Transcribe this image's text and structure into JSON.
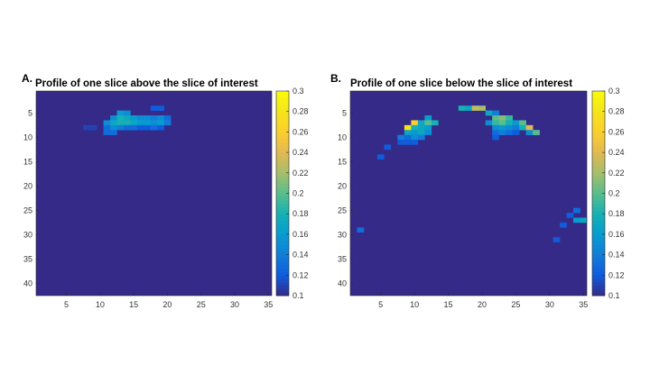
{
  "panels": [
    {
      "label": "A.",
      "chart_data": {
        "type": "heatmap",
        "title": "Profile of one slice above the slice of interest",
        "xlim": [
          0.5,
          35.5
        ],
        "ylim": [
          0.5,
          42.5
        ],
        "xticks": [
          5,
          10,
          15,
          20,
          25,
          30,
          35
        ],
        "yticks": [
          5,
          10,
          15,
          20,
          25,
          30,
          35,
          40
        ],
        "background_value": 0.1,
        "cells": [
          [
            18,
            4,
            0.12
          ],
          [
            19,
            4,
            0.12
          ],
          [
            13,
            5,
            0.16
          ],
          [
            14,
            5,
            0.15
          ],
          [
            12,
            6,
            0.15
          ],
          [
            13,
            6,
            0.18
          ],
          [
            14,
            6,
            0.17
          ],
          [
            15,
            6,
            0.16
          ],
          [
            16,
            6,
            0.15
          ],
          [
            17,
            6,
            0.15
          ],
          [
            18,
            6,
            0.14
          ],
          [
            19,
            6,
            0.15
          ],
          [
            20,
            6,
            0.13
          ],
          [
            11,
            7,
            0.15
          ],
          [
            12,
            7,
            0.17
          ],
          [
            13,
            7,
            0.18
          ],
          [
            14,
            7,
            0.18
          ],
          [
            15,
            7,
            0.17
          ],
          [
            16,
            7,
            0.16
          ],
          [
            17,
            7,
            0.16
          ],
          [
            18,
            7,
            0.15
          ],
          [
            19,
            7,
            0.16
          ],
          [
            20,
            7,
            0.14
          ],
          [
            8,
            8,
            0.11
          ],
          [
            9,
            8,
            0.11
          ],
          [
            11,
            8,
            0.13
          ],
          [
            12,
            8,
            0.15
          ],
          [
            13,
            8,
            0.14
          ],
          [
            14,
            8,
            0.13
          ],
          [
            15,
            8,
            0.13
          ],
          [
            16,
            8,
            0.12
          ],
          [
            17,
            8,
            0.12
          ],
          [
            18,
            8,
            0.13
          ],
          [
            19,
            8,
            0.12
          ],
          [
            11,
            9,
            0.13
          ],
          [
            12,
            9,
            0.13
          ]
        ],
        "colorbar": {
          "min": 0.1,
          "max": 0.3,
          "ticks": [
            "0.1",
            "0.12",
            "0.14",
            "0.16",
            "0.18",
            "0.2",
            "0.22",
            "0.24",
            "0.26",
            "0.28",
            "0.3"
          ]
        }
      }
    },
    {
      "label": "B.",
      "chart_data": {
        "type": "heatmap",
        "title": "Profile of one slice below the slice of interest",
        "xlim": [
          0.5,
          35.5
        ],
        "ylim": [
          0.5,
          42.5
        ],
        "xticks": [
          5,
          10,
          15,
          20,
          25,
          30,
          35
        ],
        "yticks": [
          5,
          10,
          15,
          20,
          25,
          30,
          35,
          40
        ],
        "background_value": 0.1,
        "cells": [
          [
            17,
            4,
            0.18
          ],
          [
            18,
            4,
            0.17
          ],
          [
            19,
            4,
            0.23
          ],
          [
            20,
            4,
            0.22
          ],
          [
            21,
            5,
            0.17
          ],
          [
            22,
            5,
            0.14
          ],
          [
            12,
            6,
            0.16
          ],
          [
            22,
            6,
            0.2
          ],
          [
            23,
            6,
            0.21
          ],
          [
            24,
            6,
            0.19
          ],
          [
            10,
            7,
            0.26
          ],
          [
            11,
            7,
            0.17
          ],
          [
            12,
            7,
            0.2
          ],
          [
            13,
            7,
            0.18
          ],
          [
            21,
            7,
            0.15
          ],
          [
            22,
            7,
            0.19
          ],
          [
            23,
            7,
            0.2
          ],
          [
            24,
            7,
            0.18
          ],
          [
            25,
            7,
            0.16
          ],
          [
            26,
            7,
            0.2
          ],
          [
            9,
            8,
            0.28
          ],
          [
            10,
            8,
            0.18
          ],
          [
            11,
            8,
            0.17
          ],
          [
            12,
            8,
            0.16
          ],
          [
            22,
            8,
            0.15
          ],
          [
            23,
            8,
            0.16
          ],
          [
            24,
            8,
            0.15
          ],
          [
            25,
            8,
            0.14
          ],
          [
            26,
            8,
            0.18
          ],
          [
            27,
            8,
            0.24
          ],
          [
            9,
            9,
            0.17
          ],
          [
            10,
            9,
            0.16
          ],
          [
            11,
            9,
            0.17
          ],
          [
            12,
            9,
            0.15
          ],
          [
            22,
            9,
            0.13
          ],
          [
            23,
            9,
            0.14
          ],
          [
            24,
            9,
            0.13
          ],
          [
            25,
            9,
            0.12
          ],
          [
            27,
            9,
            0.15
          ],
          [
            28,
            9,
            0.2
          ],
          [
            8,
            10,
            0.14
          ],
          [
            9,
            10,
            0.13
          ],
          [
            10,
            10,
            0.15
          ],
          [
            11,
            10,
            0.14
          ],
          [
            22,
            10,
            0.12
          ],
          [
            8,
            11,
            0.12
          ],
          [
            9,
            11,
            0.12
          ],
          [
            10,
            11,
            0.12
          ],
          [
            6,
            12,
            0.12
          ],
          [
            5,
            14,
            0.12
          ],
          [
            34,
            25,
            0.13
          ],
          [
            33,
            26,
            0.12
          ],
          [
            34,
            27,
            0.16
          ],
          [
            35,
            27,
            0.17
          ],
          [
            32,
            28,
            0.12
          ],
          [
            2,
            29,
            0.13
          ],
          [
            31,
            31,
            0.12
          ]
        ],
        "colorbar": {
          "min": 0.1,
          "max": 0.3,
          "ticks": [
            "0.1",
            "0.12",
            "0.14",
            "0.16",
            "0.18",
            "0.2",
            "0.22",
            "0.24",
            "0.26",
            "0.28",
            "0.3"
          ]
        }
      }
    }
  ]
}
